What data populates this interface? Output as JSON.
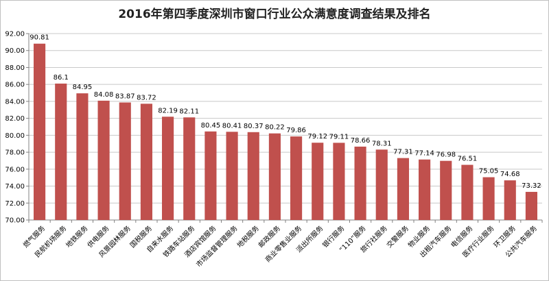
{
  "chart_data": {
    "type": "bar",
    "title": "2016年第四季度深圳市窗口行业公众满意度调查结果及排名",
    "xlabel": "",
    "ylabel": "",
    "ylim": [
      70,
      92
    ],
    "yticks": [
      "70.00",
      "72.00",
      "74.00",
      "76.00",
      "78.00",
      "80.00",
      "82.00",
      "84.00",
      "86.00",
      "88.00",
      "90.00",
      "92.00"
    ],
    "grid": true,
    "legend": "none",
    "bar_color": "#c0504d",
    "categories": [
      "燃气服务",
      "民航机场服务",
      "地铁服务",
      "供电服务",
      "风景园林服务",
      "国税服务",
      "自来水服务",
      "铁路车站服务",
      "酒店宾馆服务",
      "市场监督管理服务",
      "地税服务",
      "邮政服务",
      "商业零售业服务",
      "派出所服务",
      "银行服务",
      "“110”服务",
      "旅行社服务",
      "交警服务",
      "物业服务",
      "出租汽车服务",
      "电信服务",
      "医疗行业服务",
      "环卫服务",
      "公共汽车服务"
    ],
    "values": [
      90.81,
      86.1,
      84.95,
      84.08,
      83.87,
      83.72,
      82.19,
      82.11,
      80.45,
      80.41,
      80.37,
      80.22,
      79.86,
      79.12,
      79.11,
      78.66,
      78.31,
      77.31,
      77.14,
      76.98,
      76.51,
      75.05,
      74.68,
      73.32
    ],
    "data_labels": [
      "90.81",
      "86.1",
      "84.95",
      "84.08",
      "83.87",
      "83.72",
      "82.19",
      "82.11",
      "80.45",
      "80.41",
      "80.37",
      "80.22",
      "79.86",
      "79.12",
      "79.11",
      "78.66",
      "78.31",
      "77.31",
      "77.14",
      "76.98",
      "76.51",
      "75.05",
      "74.68",
      "73.32"
    ]
  }
}
